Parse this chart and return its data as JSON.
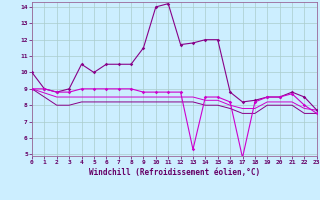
{
  "xlabel": "Windchill (Refroidissement éolien,°C)",
  "bg_color": "#cceeff",
  "grid_color": "#aacccc",
  "line_color_bright": "#cc00cc",
  "line_color_dark": "#880088",
  "xmin": 0,
  "xmax": 23,
  "ymin": 5,
  "ymax": 14,
  "yticks": [
    5,
    6,
    7,
    8,
    9,
    10,
    11,
    12,
    13,
    14
  ],
  "xticks": [
    0,
    1,
    2,
    3,
    4,
    5,
    6,
    7,
    8,
    9,
    10,
    11,
    12,
    13,
    14,
    15,
    16,
    17,
    18,
    19,
    20,
    21,
    22,
    23
  ],
  "s1_x": [
    0,
    1,
    2,
    3,
    4,
    5,
    6,
    7,
    8,
    9,
    10,
    11,
    12,
    13,
    14,
    15,
    16,
    17,
    18,
    19,
    20,
    21,
    22,
    23
  ],
  "s1_y": [
    10.0,
    9.0,
    8.8,
    9.0,
    10.5,
    10.0,
    10.5,
    10.5,
    10.5,
    11.5,
    14.0,
    14.2,
    11.7,
    11.8,
    12.0,
    12.0,
    8.8,
    8.2,
    8.3,
    8.5,
    8.5,
    8.8,
    8.5,
    7.7
  ],
  "s2_x": [
    0,
    1,
    2,
    3,
    4,
    5,
    6,
    7,
    8,
    9,
    10,
    11,
    12,
    13,
    14,
    15,
    16,
    17,
    18,
    19,
    20,
    21,
    22,
    23
  ],
  "s2_y": [
    9.0,
    9.0,
    8.8,
    8.8,
    9.0,
    9.0,
    9.0,
    9.0,
    9.0,
    8.8,
    8.8,
    8.8,
    8.8,
    5.3,
    8.5,
    8.5,
    8.2,
    4.8,
    8.2,
    8.5,
    8.5,
    8.7,
    8.0,
    7.5
  ],
  "s3_x": [
    0,
    2,
    3,
    4,
    5,
    6,
    7,
    8,
    9,
    10,
    11,
    12,
    13,
    14,
    15,
    16,
    17,
    18,
    19,
    20,
    21,
    22,
    23
  ],
  "s3_y": [
    9.0,
    8.5,
    8.5,
    8.5,
    8.5,
    8.5,
    8.5,
    8.5,
    8.5,
    8.5,
    8.5,
    8.5,
    8.5,
    8.3,
    8.3,
    8.0,
    7.8,
    7.8,
    8.2,
    8.2,
    8.2,
    7.8,
    7.7
  ],
  "s4_x": [
    0,
    2,
    3,
    4,
    5,
    6,
    7,
    8,
    9,
    10,
    11,
    12,
    13,
    14,
    15,
    16,
    17,
    18,
    19,
    20,
    21,
    22,
    23
  ],
  "s4_y": [
    9.0,
    8.0,
    8.0,
    8.2,
    8.2,
    8.2,
    8.2,
    8.2,
    8.2,
    8.2,
    8.2,
    8.2,
    8.2,
    8.0,
    8.0,
    7.8,
    7.5,
    7.5,
    8.0,
    8.0,
    8.0,
    7.5,
    7.5
  ]
}
